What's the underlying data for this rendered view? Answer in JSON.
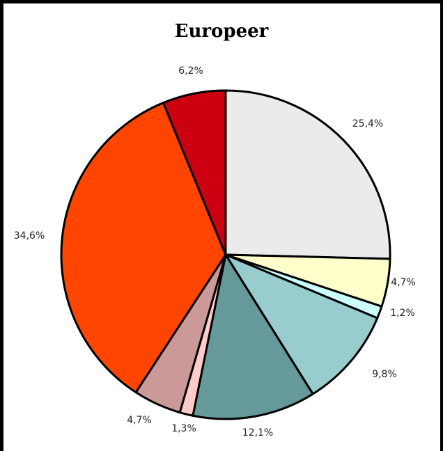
{
  "chart_data": {
    "type": "pie",
    "title": "Europeer",
    "slices": [
      {
        "label": "25,4%",
        "value": 25.4,
        "color": "#ebebeb"
      },
      {
        "label": "4,7%",
        "value": 4.7,
        "color": "#ffffcc"
      },
      {
        "label": "1,2%",
        "value": 1.2,
        "color": "#ccffff"
      },
      {
        "label": "9,8%",
        "value": 9.8,
        "color": "#99cccc"
      },
      {
        "label": "12,1%",
        "value": 12.1,
        "color": "#669999"
      },
      {
        "label": "1,3%",
        "value": 1.3,
        "color": "#ffcccc"
      },
      {
        "label": "4,7%",
        "value": 4.7,
        "color": "#cc9999"
      },
      {
        "label": "34,6%",
        "value": 34.6,
        "color": "#ff4500"
      },
      {
        "label": "6,2%",
        "value": 6.2,
        "color": "#cc0011"
      }
    ],
    "start": "12 o'clock",
    "direction": "clockwise",
    "legend": "none"
  }
}
